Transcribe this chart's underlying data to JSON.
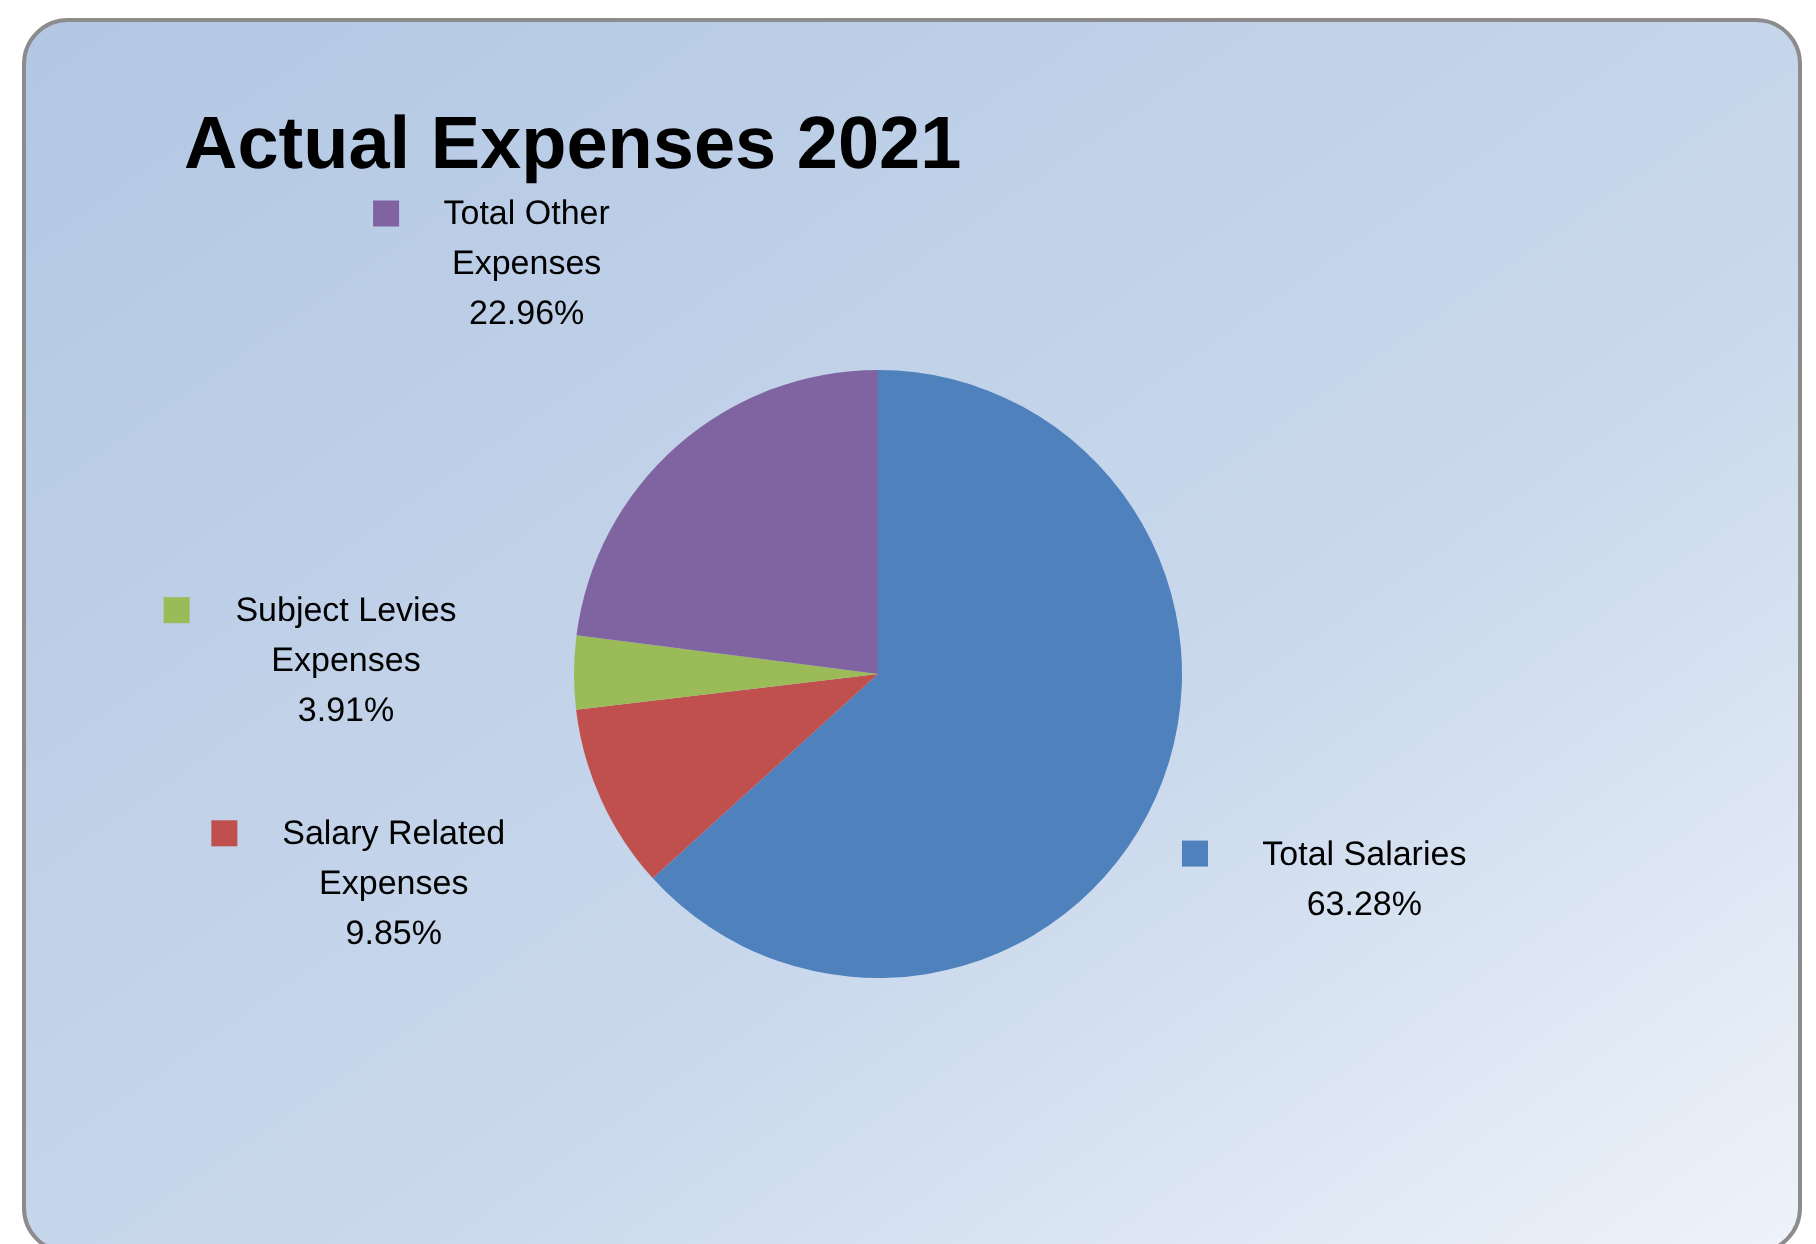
{
  "chart_data": {
    "type": "pie",
    "title": "Actual Expenses 2021",
    "categories": [
      "Total Salaries",
      "Salary Related Expenses",
      "Subject Levies Expenses",
      "Total Other Expenses"
    ],
    "values": [
      63.28,
      9.85,
      3.91,
      22.96
    ],
    "colors": [
      "#4f81bd",
      "#c0504d",
      "#9bbb59",
      "#8064a2"
    ],
    "value_labels": [
      "63.28%",
      "9.85%",
      "3.91%",
      "22.96%"
    ],
    "legend": "left"
  }
}
